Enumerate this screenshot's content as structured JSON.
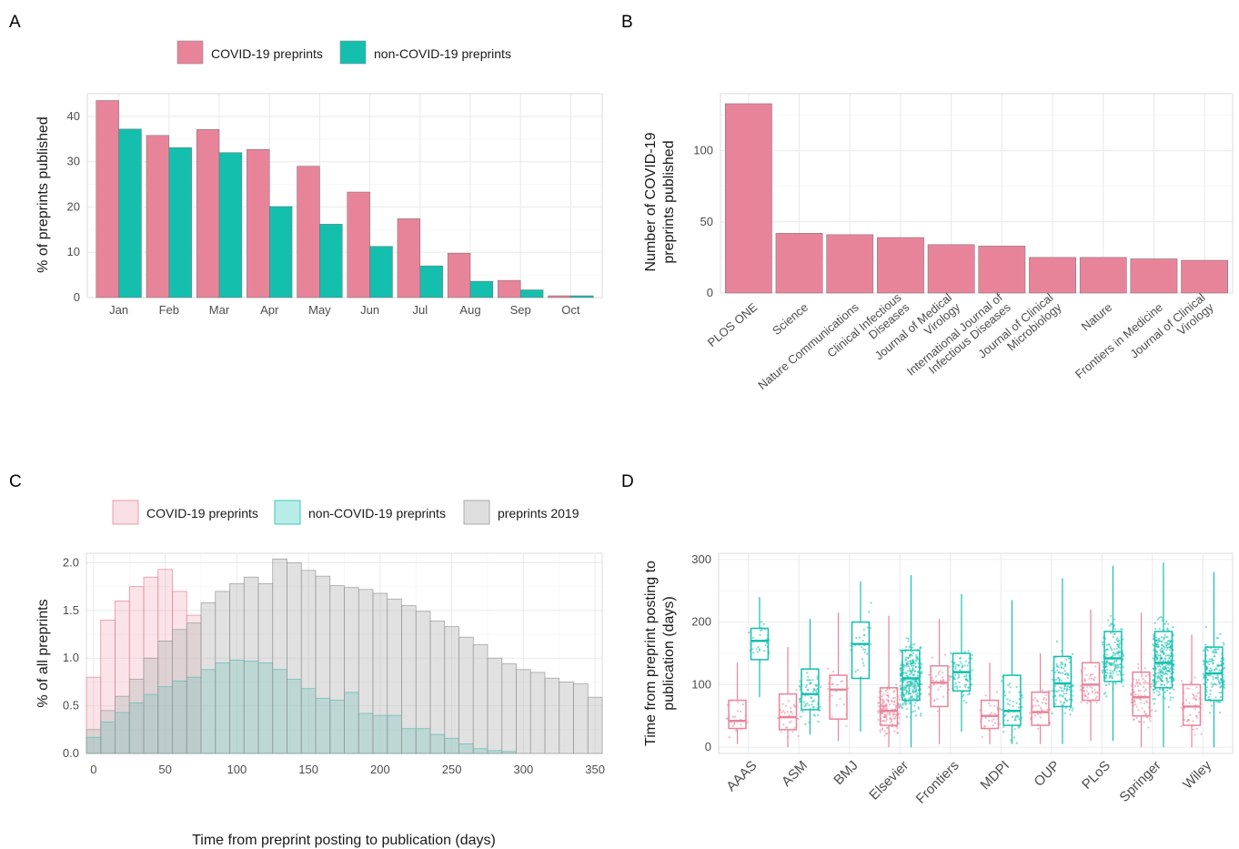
{
  "colors": {
    "covid": "#E8849A",
    "noncovid": "#14BFAE",
    "preprints2019": "#BDBDBD",
    "grid": "#EBEBEB"
  },
  "chart_data": [
    {
      "panel": "A",
      "type": "bar",
      "xlabel": "",
      "ylabel": "% of preprints published",
      "ylim": [
        0,
        45
      ],
      "yticks": [
        0,
        10,
        20,
        30,
        40
      ],
      "categories": [
        "Jan",
        "Feb",
        "Mar",
        "Apr",
        "May",
        "Jun",
        "Jul",
        "Aug",
        "Sep",
        "Oct"
      ],
      "legend": "top",
      "series": [
        {
          "name": "COVID-19 preprints",
          "values": [
            43.5,
            35.8,
            37.1,
            32.7,
            29.0,
            23.3,
            17.4,
            9.8,
            3.8,
            0.4
          ]
        },
        {
          "name": "non-COVID-19 preprints",
          "values": [
            37.2,
            33.1,
            32.0,
            20.1,
            16.2,
            11.3,
            7.0,
            3.6,
            1.7,
            0.4
          ]
        }
      ]
    },
    {
      "panel": "B",
      "type": "bar",
      "xlabel": "",
      "ylabel": "Number of COVID-19 preprints published",
      "ylabel_lines": [
        "Number of COVID-19",
        "preprints published"
      ],
      "ylim": [
        0,
        140
      ],
      "yticks": [
        0,
        50,
        100
      ],
      "categories": [
        [
          "PLOS ONE"
        ],
        [
          "Science"
        ],
        [
          "Nature Communications"
        ],
        [
          "Clinical Infectious",
          "Diseases"
        ],
        [
          "Journal of Medical",
          "Virology"
        ],
        [
          "International Journal of",
          "Infectious Diseases"
        ],
        [
          "Journal of Clinical",
          "Microbiology"
        ],
        [
          "Nature"
        ],
        [
          "Frontiers in Medicine"
        ],
        [
          "Journal of Clinical",
          "Virology"
        ]
      ],
      "values": [
        133,
        42,
        41,
        39,
        34,
        33,
        25,
        25,
        24,
        23
      ]
    },
    {
      "panel": "C",
      "type": "histogram",
      "xlabel": "Time from preprint posting to publication (days)",
      "ylabel": "% of all preprints",
      "xlim": [
        -5,
        355
      ],
      "ylim": [
        0,
        2.1
      ],
      "xticks": [
        0,
        50,
        100,
        150,
        200,
        250,
        300,
        350
      ],
      "yticks": [
        "0.0",
        "0.5",
        "1.0",
        "1.5",
        "2.0"
      ],
      "bin_width": 10,
      "legend": "top",
      "series": [
        {
          "name": "COVID-19 preprints",
          "bin_starts": [
            -5,
            5,
            15,
            25,
            35,
            45,
            55,
            65
          ],
          "values": [
            0.8,
            1.4,
            1.6,
            1.75,
            1.85,
            1.93,
            1.7,
            1.45
          ]
        },
        {
          "name": "non-COVID-19 preprints",
          "bin_starts": [
            -5,
            5,
            15,
            25,
            35,
            45,
            55,
            65,
            75,
            85,
            95,
            105,
            115,
            125,
            135,
            145,
            155,
            165,
            175,
            185,
            195,
            205,
            215,
            225,
            235,
            245,
            255,
            265,
            275,
            285
          ],
          "values": [
            0.17,
            0.33,
            0.43,
            0.53,
            0.62,
            0.7,
            0.76,
            0.8,
            0.88,
            0.95,
            0.98,
            0.97,
            0.95,
            0.88,
            0.78,
            0.68,
            0.58,
            0.56,
            0.64,
            0.42,
            0.4,
            0.4,
            0.26,
            0.26,
            0.2,
            0.16,
            0.1,
            0.05,
            0.03,
            0.02
          ]
        },
        {
          "name": "preprints 2019",
          "bin_starts": [
            -5,
            5,
            15,
            25,
            35,
            45,
            55,
            65,
            75,
            85,
            95,
            105,
            115,
            125,
            135,
            145,
            155,
            165,
            175,
            185,
            195,
            205,
            215,
            225,
            235,
            245,
            255,
            265,
            275,
            285,
            295,
            305,
            315,
            325,
            335,
            345
          ],
          "values": [
            0.25,
            0.45,
            0.6,
            0.78,
            1.0,
            1.18,
            1.3,
            1.37,
            1.58,
            1.7,
            1.78,
            1.85,
            1.78,
            2.04,
            2.0,
            1.92,
            1.86,
            1.76,
            1.74,
            1.72,
            1.68,
            1.62,
            1.55,
            1.49,
            1.39,
            1.33,
            1.22,
            1.14,
            1.0,
            0.94,
            0.88,
            0.85,
            0.79,
            0.75,
            0.73,
            0.59
          ]
        }
      ]
    },
    {
      "panel": "D",
      "type": "box",
      "xlabel": "",
      "ylabel": "Time from preprint posting to publication (days)",
      "ylabel_lines": [
        "Time from preprint posting to",
        "publication (days)"
      ],
      "ylim": [
        -10,
        310
      ],
      "yticks": [
        0,
        100,
        200,
        300
      ],
      "categories": [
        "AAAS",
        "ASM",
        "BMJ",
        "Elsevier",
        "Frontiers",
        "MDPI",
        "OUP",
        "PLoS",
        "Springer",
        "Wiley"
      ],
      "series": [
        {
          "group": "COVID-19",
          "boxes": [
            {
              "lower": 5,
              "q1": 30,
              "median": 42,
              "q3": 75,
              "upper": 135
            },
            {
              "lower": 0,
              "q1": 28,
              "median": 48,
              "q3": 85,
              "upper": 160
            },
            {
              "lower": 10,
              "q1": 45,
              "median": 92,
              "q3": 115,
              "upper": 215
            },
            {
              "lower": 0,
              "q1": 35,
              "median": 58,
              "q3": 95,
              "upper": 210
            },
            {
              "lower": 5,
              "q1": 65,
              "median": 103,
              "q3": 130,
              "upper": 205
            },
            {
              "lower": 5,
              "q1": 30,
              "median": 50,
              "q3": 75,
              "upper": 135
            },
            {
              "lower": 5,
              "q1": 35,
              "median": 56,
              "q3": 88,
              "upper": 150
            },
            {
              "lower": 10,
              "q1": 75,
              "median": 100,
              "q3": 135,
              "upper": 220
            },
            {
              "lower": 0,
              "q1": 50,
              "median": 80,
              "q3": 120,
              "upper": 215
            },
            {
              "lower": 0,
              "q1": 35,
              "median": 65,
              "q3": 100,
              "upper": 180
            }
          ]
        },
        {
          "group": "non-COVID-19",
          "boxes": [
            {
              "lower": 80,
              "q1": 140,
              "median": 170,
              "q3": 190,
              "upper": 240
            },
            {
              "lower": 20,
              "q1": 60,
              "median": 85,
              "q3": 125,
              "upper": 205
            },
            {
              "lower": 25,
              "q1": 110,
              "median": 165,
              "q3": 200,
              "upper": 265
            },
            {
              "lower": 0,
              "q1": 75,
              "median": 110,
              "q3": 155,
              "upper": 275
            },
            {
              "lower": 25,
              "q1": 90,
              "median": 120,
              "q3": 150,
              "upper": 245
            },
            {
              "lower": 5,
              "q1": 35,
              "median": 58,
              "q3": 115,
              "upper": 235
            },
            {
              "lower": 5,
              "q1": 65,
              "median": 102,
              "q3": 145,
              "upper": 270
            },
            {
              "lower": 10,
              "q1": 105,
              "median": 142,
              "q3": 185,
              "upper": 290
            },
            {
              "lower": 0,
              "q1": 95,
              "median": 135,
              "q3": 185,
              "upper": 295
            },
            {
              "lower": 0,
              "q1": 75,
              "median": 118,
              "q3": 160,
              "upper": 280
            }
          ]
        }
      ]
    }
  ],
  "panel_labels": [
    "A",
    "B",
    "C",
    "D"
  ],
  "legend_A": {
    "covid": "COVID-19 preprints",
    "noncovid": "non-COVID-19 preprints"
  },
  "legend_C": {
    "covid": "COVID-19 preprints",
    "noncovid": "non-COVID-19 preprints",
    "prev": "preprints 2019"
  },
  "axis_titles": {
    "a_y": "% of preprints published",
    "b_y": [
      "Number of COVID-19",
      "preprints published"
    ],
    "c_y": "% of all preprints",
    "c_x": "Time from preprint posting to publication (days)",
    "d_y": [
      "Time from preprint posting to",
      "publication (days)"
    ]
  }
}
